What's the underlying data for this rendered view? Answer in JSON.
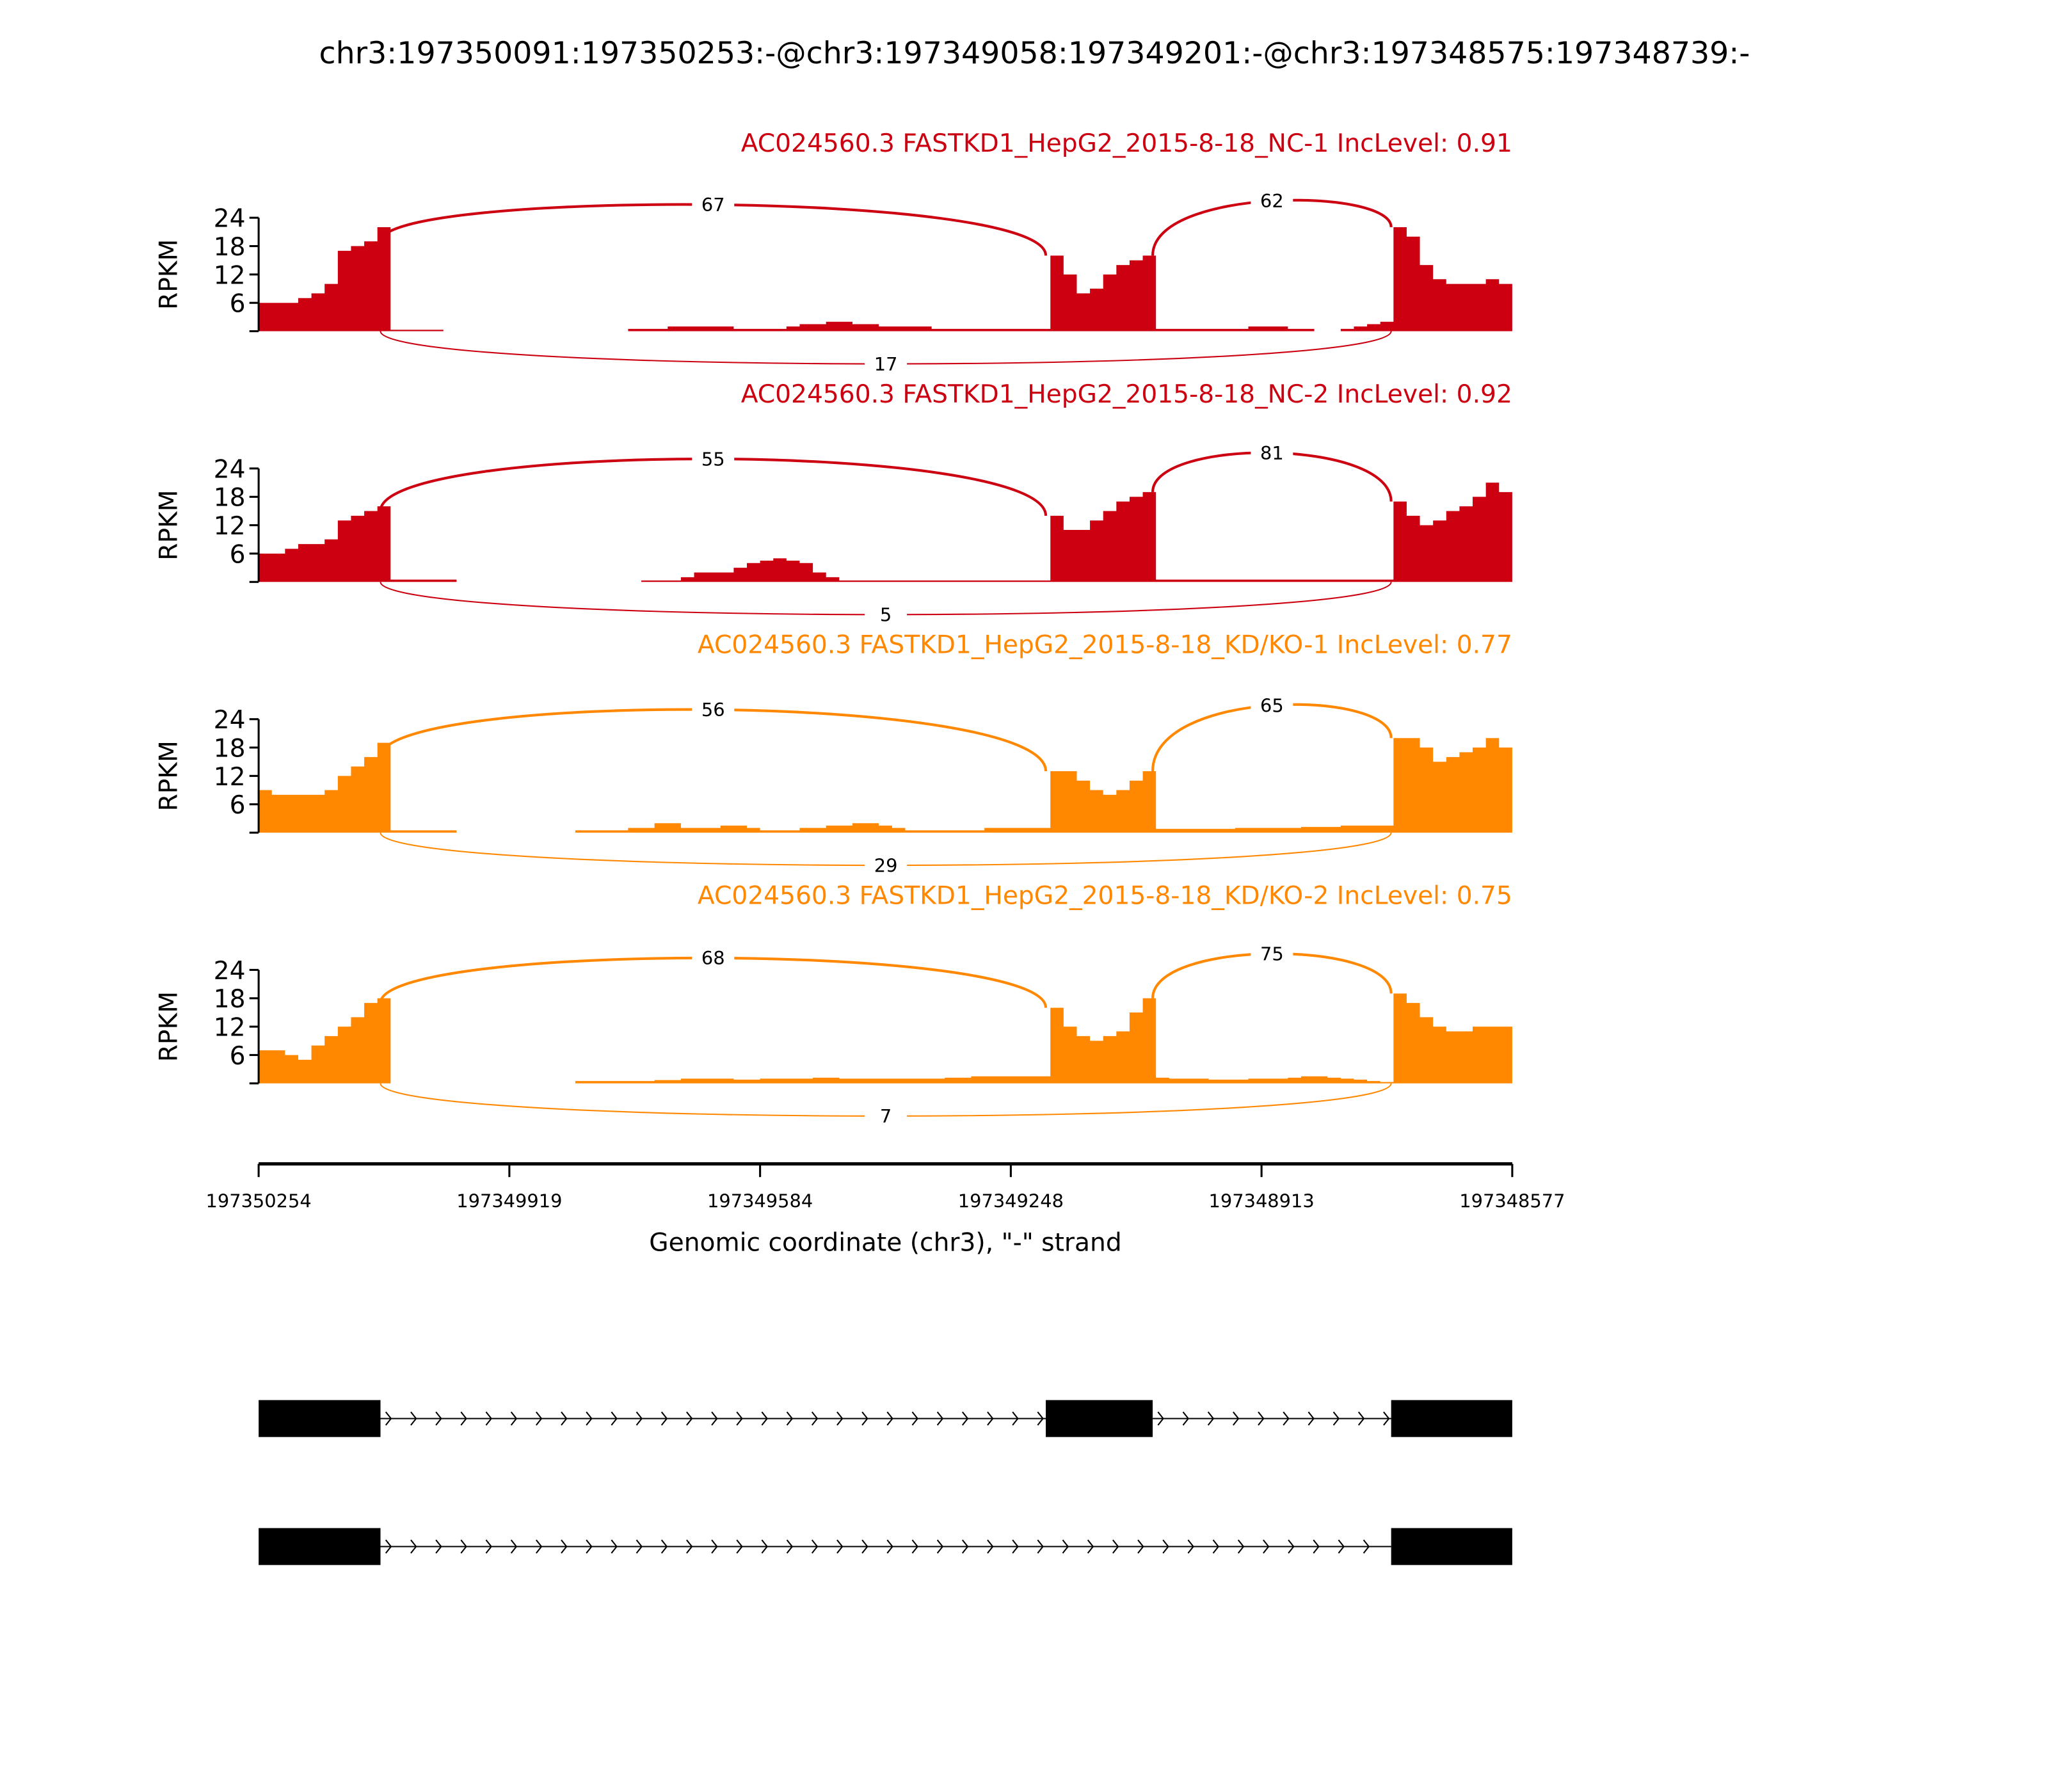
{
  "chart_data": {
    "type": "area",
    "title": "chr3:197350091:197350253:-@chr3:197349058:197349201:-@chr3:197348575:197348739:-",
    "xlabel": "Genomic coordinate (chr3), \"-\" strand",
    "ylabel": "RPKM",
    "xlim": [
      197350254,
      197348577
    ],
    "xticks": [
      "197350254",
      "197349919",
      "197349584",
      "197349248",
      "197348913",
      "197348577"
    ],
    "ylim": [
      0,
      24
    ],
    "yticks": [
      "6",
      "12",
      "18",
      "24"
    ],
    "bin_count": 95,
    "exons": [
      [
        197350254,
        197350091
      ],
      [
        197349201,
        197349058
      ],
      [
        197348739,
        197348577
      ]
    ],
    "samples": [
      {
        "title": "AC024560.3 FASTKD1_HepG2_2015-8-18_NC-1 IncLevel: 0.91",
        "color": "#cc0011",
        "junctions": {
          "inc1": "67",
          "inc2": "62",
          "skip": "17"
        },
        "coverage": [
          6,
          6,
          6,
          7,
          8,
          10,
          17,
          18,
          19,
          22,
          0.3,
          0.3,
          0.3,
          0.3,
          0,
          0,
          0,
          0,
          0,
          0,
          0,
          0,
          0,
          0,
          0,
          0,
          0,
          0,
          0.5,
          0.5,
          0.5,
          1,
          1,
          1,
          1,
          1,
          0.5,
          0.5,
          0.5,
          0.5,
          1,
          1.5,
          1.5,
          2,
          2,
          1.5,
          1.5,
          1,
          1,
          1,
          1,
          0.5,
          0.5,
          0.5,
          0.5,
          0.5,
          0.5,
          0.5,
          0.5,
          0.5,
          16,
          12,
          8,
          9,
          12,
          14,
          15,
          16,
          0.5,
          0.5,
          0.5,
          0.5,
          0.5,
          0.5,
          0.5,
          1,
          1,
          1,
          0.5,
          0.5,
          0,
          0,
          0.5,
          1,
          1.5,
          2,
          22,
          20,
          14,
          11,
          10,
          10,
          10,
          11,
          10
        ]
      },
      {
        "title": "AC024560.3 FASTKD1_HepG2_2015-8-18_NC-2 IncLevel: 0.92",
        "color": "#cc0011",
        "junctions": {
          "inc1": "55",
          "inc2": "81",
          "skip": "5"
        },
        "coverage": [
          6,
          6,
          7,
          8,
          8,
          9,
          13,
          14,
          15,
          16,
          0.5,
          0.5,
          0.5,
          0.5,
          0.5,
          0,
          0,
          0,
          0,
          0,
          0,
          0,
          0,
          0,
          0,
          0,
          0,
          0,
          0,
          0.3,
          0.3,
          0.3,
          1,
          2,
          2,
          2,
          3,
          4,
          4.5,
          5,
          4.5,
          4,
          2,
          1,
          0.3,
          0.3,
          0.3,
          0.3,
          0.3,
          0.3,
          0.3,
          0.3,
          0.3,
          0.3,
          0.3,
          0.3,
          0.3,
          0.3,
          0.3,
          0.3,
          14,
          11,
          11,
          13,
          15,
          17,
          18,
          19,
          0.5,
          0.5,
          0.5,
          0.5,
          0.5,
          0.5,
          0.5,
          0.5,
          0.5,
          0.5,
          0.5,
          0.5,
          0.5,
          0.5,
          0.5,
          0.5,
          0.5,
          0.5,
          17,
          14,
          12,
          13,
          15,
          16,
          18,
          21,
          19
        ]
      },
      {
        "title": "AC024560.3 FASTKD1_HepG2_2015-8-18_KD/KO-1 IncLevel: 0.77",
        "color": "#ff8800",
        "junctions": {
          "inc1": "56",
          "inc2": "65",
          "skip": "29"
        },
        "coverage": [
          9,
          8,
          8,
          8,
          8,
          9,
          12,
          14,
          16,
          19,
          0.5,
          0.5,
          0.5,
          0.5,
          0.5,
          0,
          0,
          0,
          0,
          0,
          0,
          0,
          0,
          0,
          0.5,
          0.5,
          0.5,
          0.5,
          1,
          1,
          2,
          2,
          1,
          1,
          1,
          1.5,
          1.5,
          1,
          0.5,
          0.5,
          0.5,
          1,
          1,
          1.5,
          1.5,
          2,
          2,
          1.5,
          1,
          0.5,
          0.5,
          0.5,
          0.5,
          0.5,
          0.5,
          1,
          1,
          1,
          1,
          1,
          13,
          13,
          11,
          9,
          8,
          9,
          11,
          13,
          0.8,
          0.8,
          0.8,
          0.8,
          0.8,
          0.8,
          1,
          1,
          1,
          1,
          1,
          1.2,
          1.2,
          1.2,
          1.5,
          1.5,
          1.5,
          1.5,
          20,
          20,
          18,
          15,
          16,
          17,
          18,
          20,
          18
        ]
      },
      {
        "title": "AC024560.3 FASTKD1_HepG2_2015-8-18_KD/KO-2 IncLevel: 0.75",
        "color": "#ff8800",
        "junctions": {
          "inc1": "68",
          "inc2": "75",
          "skip": "7"
        },
        "coverage": [
          7,
          7,
          6,
          5,
          8,
          10,
          12,
          14,
          17,
          18,
          0,
          0,
          0,
          0,
          0,
          0,
          0,
          0,
          0,
          0,
          0,
          0,
          0,
          0,
          0.5,
          0.5,
          0.5,
          0.5,
          0.5,
          0.5,
          0.7,
          0.7,
          1,
          1,
          1,
          1,
          0.8,
          0.8,
          1,
          1,
          1,
          1,
          1.2,
          1.2,
          1,
          1,
          1,
          1,
          1,
          1,
          1,
          1,
          1.2,
          1.2,
          1.5,
          1.5,
          1.5,
          1.5,
          1.5,
          1.5,
          16,
          12,
          10,
          9,
          10,
          11,
          15,
          18,
          1.2,
          1,
          1,
          1,
          0.8,
          0.8,
          0.8,
          1,
          1,
          1,
          1.2,
          1.5,
          1.5,
          1.2,
          1,
          0.8,
          0.5,
          0.3,
          19,
          17,
          14,
          12,
          11,
          11,
          12,
          12,
          12
        ]
      }
    ],
    "isoforms": [
      {
        "exons": [
          1,
          2,
          3
        ]
      },
      {
        "exons": [
          1,
          3
        ]
      }
    ]
  }
}
